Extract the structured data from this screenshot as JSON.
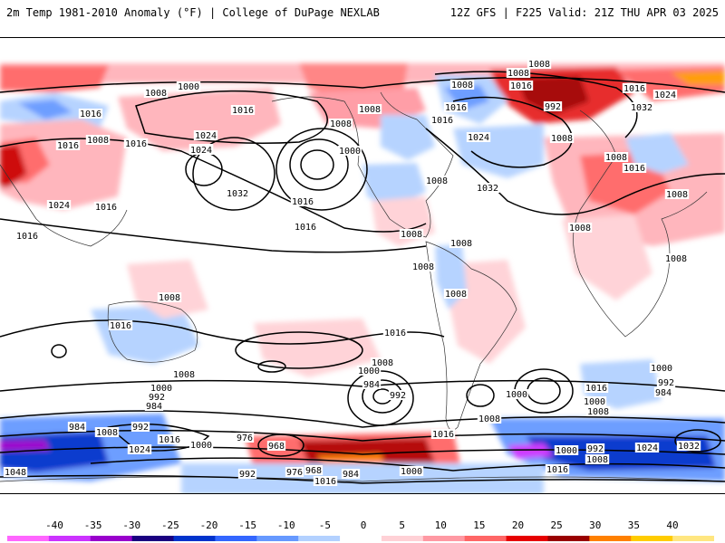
{
  "header": {
    "left_title": "2m Temp 1981-2010 Anomaly (°F) | College of DuPage NEXLAB",
    "right_title": "12Z GFS | F225 Valid: 21Z THU APR 03 2025"
  },
  "isobar_labels": [
    {
      "id": "l1",
      "text": "1008"
    },
    {
      "id": "l2",
      "text": "1000"
    },
    {
      "id": "l3",
      "text": "1008"
    },
    {
      "id": "l4",
      "text": "1016"
    },
    {
      "id": "l5",
      "text": "1016"
    },
    {
      "id": "l6",
      "text": "1008"
    },
    {
      "id": "l7",
      "text": "1016"
    },
    {
      "id": "l8",
      "text": "1016"
    },
    {
      "id": "l9",
      "text": "1024"
    },
    {
      "id": "l10",
      "text": "1024"
    },
    {
      "id": "l11",
      "text": "1032"
    },
    {
      "id": "l12",
      "text": "1008"
    },
    {
      "id": "l13",
      "text": "1016"
    },
    {
      "id": "l14",
      "text": "1008"
    },
    {
      "id": "l15",
      "text": "1016"
    },
    {
      "id": "l16",
      "text": "1008"
    },
    {
      "id": "l17",
      "text": "1000"
    },
    {
      "id": "l18",
      "text": "1016"
    },
    {
      "id": "l19",
      "text": "1016"
    },
    {
      "id": "l20",
      "text": "1008"
    },
    {
      "id": "l21",
      "text": "1008"
    },
    {
      "id": "l22",
      "text": "1008"
    },
    {
      "id": "l23",
      "text": "992"
    },
    {
      "id": "l24",
      "text": "1008"
    },
    {
      "id": "l25",
      "text": "1024"
    },
    {
      "id": "l26",
      "text": "1032"
    },
    {
      "id": "l27",
      "text": "1016"
    },
    {
      "id": "l28",
      "text": "1024"
    },
    {
      "id": "l29",
      "text": "1016"
    },
    {
      "id": "l30",
      "text": "1008"
    },
    {
      "id": "l31",
      "text": "1032"
    },
    {
      "id": "l32",
      "text": "1016"
    },
    {
      "id": "l33",
      "text": "1008"
    },
    {
      "id": "l34",
      "text": "1008"
    },
    {
      "id": "l35",
      "text": "1008"
    },
    {
      "id": "l36",
      "text": "1008"
    },
    {
      "id": "l37",
      "text": "1008"
    },
    {
      "id": "l38",
      "text": "1008"
    },
    {
      "id": "l39",
      "text": "1016"
    },
    {
      "id": "l40",
      "text": "1024"
    },
    {
      "id": "l41",
      "text": "1016"
    },
    {
      "id": "l42",
      "text": "1024"
    },
    {
      "id": "l43",
      "text": "1016"
    },
    {
      "id": "l44",
      "text": "1008"
    },
    {
      "id": "l45",
      "text": "1008"
    },
    {
      "id": "l46",
      "text": "1000"
    },
    {
      "id": "l47",
      "text": "1016"
    },
    {
      "id": "l48",
      "text": "1000"
    },
    {
      "id": "l49",
      "text": "992"
    },
    {
      "id": "l50",
      "text": "984"
    },
    {
      "id": "l51",
      "text": "1008"
    },
    {
      "id": "l52",
      "text": "1000"
    },
    {
      "id": "l53",
      "text": "1000"
    },
    {
      "id": "l54",
      "text": "992"
    },
    {
      "id": "l55",
      "text": "984"
    },
    {
      "id": "l56",
      "text": "1008"
    },
    {
      "id": "l57",
      "text": "1016"
    },
    {
      "id": "l58",
      "text": "1000"
    },
    {
      "id": "l59",
      "text": "992"
    },
    {
      "id": "l60",
      "text": "984"
    },
    {
      "id": "l61",
      "text": "1008"
    },
    {
      "id": "l62",
      "text": "984"
    },
    {
      "id": "l63",
      "text": "992"
    },
    {
      "id": "l64",
      "text": "1008"
    },
    {
      "id": "l65",
      "text": "1024"
    },
    {
      "id": "l66",
      "text": "1016"
    },
    {
      "id": "l67",
      "text": "1000"
    },
    {
      "id": "l68",
      "text": "976"
    },
    {
      "id": "l69",
      "text": "968"
    },
    {
      "id": "l70",
      "text": "1016"
    },
    {
      "id": "l71",
      "text": "1008"
    },
    {
      "id": "l72",
      "text": "992"
    },
    {
      "id": "l73",
      "text": "1000"
    },
    {
      "id": "l74",
      "text": "1008"
    },
    {
      "id": "l75",
      "text": "1024"
    },
    {
      "id": "l76",
      "text": "1032"
    },
    {
      "id": "l77",
      "text": "1016"
    },
    {
      "id": "l78",
      "text": "1048"
    },
    {
      "id": "l79",
      "text": "992"
    },
    {
      "id": "l80",
      "text": "976"
    },
    {
      "id": "l81",
      "text": "968"
    },
    {
      "id": "l82",
      "text": "984"
    },
    {
      "id": "l83",
      "text": "1000"
    },
    {
      "id": "l84",
      "text": "1016"
    }
  ],
  "colorbar": {
    "ticks": [
      "-40",
      "-35",
      "-30",
      "-25",
      "-20",
      "-15",
      "-10",
      "-5",
      "0",
      "5",
      "10",
      "15",
      "20",
      "25",
      "30",
      "35",
      "40"
    ],
    "colors": [
      "#ff66ff",
      "#cc33ff",
      "#9900cc",
      "#1a0080",
      "#0033cc",
      "#3366ff",
      "#6699ff",
      "#b3d1ff",
      "#ffffff",
      "#ffd1d6",
      "#ff99a3",
      "#ff6666",
      "#e60000",
      "#990000",
      "#ff8000",
      "#ffcc00",
      "#ffe680"
    ]
  }
}
